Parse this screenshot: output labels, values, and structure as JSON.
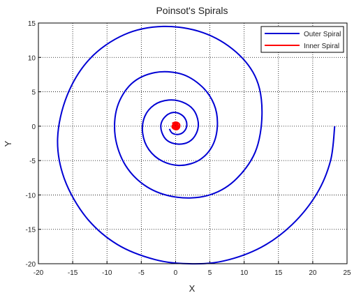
{
  "chart_data": {
    "type": "line",
    "title": "Poinsot's Spirals",
    "xlabel": "X",
    "ylabel": "Y",
    "xlim": [
      -20,
      25
    ],
    "ylim": [
      -20,
      15
    ],
    "xticks": [
      -20,
      -15,
      -10,
      -5,
      0,
      5,
      10,
      15,
      20,
      25
    ],
    "yticks": [
      15,
      10,
      5,
      0,
      -5,
      -10,
      -15,
      -20
    ],
    "xtick_labels": [
      "-20",
      "-15",
      "-10",
      "-5",
      "0",
      "5",
      "10",
      "15",
      "20",
      "25"
    ],
    "ytick_labels": [
      "15",
      "10",
      "5",
      "0",
      "-5",
      "-10",
      "-15",
      "-20"
    ],
    "grid": true,
    "legend_position": "top-right",
    "series": [
      {
        "name": "Outer Spiral",
        "color": "#0000d4",
        "points": [
          [
            23.2,
            0
          ],
          [
            22.6,
            -5.0
          ],
          [
            20.6,
            -9.8
          ],
          [
            17.0,
            -14.3
          ],
          [
            12.5,
            -17.6
          ],
          [
            7.0,
            -19.6
          ],
          [
            2.0,
            -20.0
          ],
          [
            -3.0,
            -19.4
          ],
          [
            -8.5,
            -17.2
          ],
          [
            -13.0,
            -13.3
          ],
          [
            -16.2,
            -7.7
          ],
          [
            -17.2,
            -1.8
          ],
          [
            -15.8,
            4.5
          ],
          [
            -12.5,
            9.8
          ],
          [
            -7.5,
            13.3
          ],
          [
            -1.8,
            14.5
          ],
          [
            4.0,
            13.6
          ],
          [
            8.8,
            10.8
          ],
          [
            11.8,
            6.8
          ],
          [
            12.6,
            1.7
          ],
          [
            11.6,
            -3.8
          ],
          [
            8.5,
            -8.0
          ],
          [
            4.6,
            -10.1
          ],
          [
            0.0,
            -10.3
          ],
          [
            -4.2,
            -8.8
          ],
          [
            -7.3,
            -5.7
          ],
          [
            -8.8,
            -1.5
          ],
          [
            -8.5,
            2.8
          ],
          [
            -6.4,
            6.2
          ],
          [
            -3.0,
            7.8
          ],
          [
            0.8,
            7.6
          ],
          [
            3.8,
            5.8
          ],
          [
            5.6,
            3.2
          ],
          [
            6.1,
            0.2
          ],
          [
            5.4,
            -2.8
          ],
          [
            3.5,
            -4.9
          ],
          [
            0.8,
            -5.7
          ],
          [
            -1.9,
            -5.1
          ],
          [
            -3.9,
            -3.4
          ],
          [
            -4.8,
            -1.0
          ],
          [
            -4.5,
            1.4
          ],
          [
            -3.1,
            3.1
          ],
          [
            -1.0,
            3.8
          ],
          [
            1.0,
            3.5
          ],
          [
            2.6,
            2.4
          ],
          [
            3.3,
            0.6
          ],
          [
            3.0,
            -1.1
          ],
          [
            1.9,
            -2.3
          ],
          [
            0.3,
            -2.6
          ],
          [
            -1.2,
            -2.1
          ],
          [
            -2.0,
            -0.9
          ],
          [
            -2.1,
            0.4
          ],
          [
            -1.4,
            1.5
          ],
          [
            -0.3,
            2.0
          ],
          [
            0.8,
            1.7
          ],
          [
            1.5,
            0.9
          ],
          [
            1.6,
            -0.1
          ],
          [
            1.1,
            -0.9
          ],
          [
            0.3,
            -1.2
          ],
          [
            -0.5,
            -1.0
          ],
          [
            -0.9,
            -0.4
          ]
        ]
      },
      {
        "name": "Inner Spiral",
        "color": "#ff0000",
        "points": [
          [
            -0.5,
            0.4
          ],
          [
            0.0,
            0.6
          ],
          [
            0.5,
            0.4
          ],
          [
            0.6,
            0.0
          ],
          [
            0.4,
            -0.4
          ],
          [
            0.0,
            -0.5
          ],
          [
            -0.4,
            -0.3
          ],
          [
            -0.5,
            0.0
          ],
          [
            -0.3,
            0.3
          ],
          [
            0.0,
            0.4
          ],
          [
            0.3,
            0.3
          ],
          [
            0.4,
            0.0
          ],
          [
            0.3,
            -0.3
          ],
          [
            0.0,
            -0.4
          ],
          [
            -0.3,
            -0.2
          ],
          [
            -0.35,
            0.0
          ],
          [
            -0.2,
            0.25
          ],
          [
            0.0,
            0.3
          ],
          [
            0.2,
            0.2
          ],
          [
            0.3,
            0.0
          ],
          [
            0.2,
            -0.2
          ],
          [
            0.0,
            -0.25
          ],
          [
            -0.15,
            -0.15
          ],
          [
            -0.2,
            0.0
          ],
          [
            -0.1,
            0.15
          ],
          [
            0.0,
            0.2
          ],
          [
            0.1,
            0.1
          ],
          [
            0.15,
            0.0
          ],
          [
            0.05,
            -0.1
          ],
          [
            0.0,
            0.0
          ]
        ]
      }
    ]
  }
}
